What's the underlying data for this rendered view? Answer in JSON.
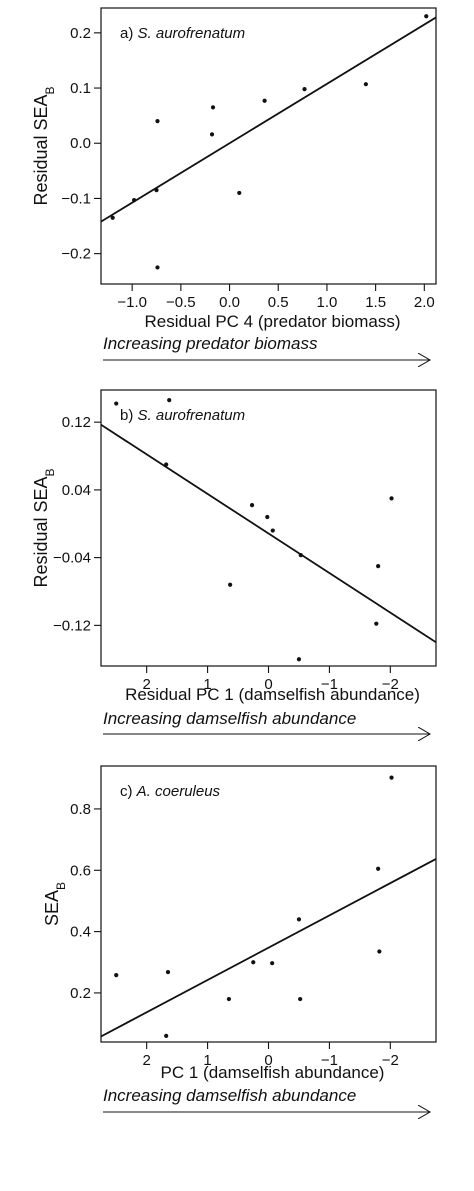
{
  "chart_data": [
    {
      "type": "scatter",
      "panel_label": "a)",
      "species": "S. aurofrenatum",
      "xlabel": "Residual PC 4 (predator biomass)",
      "ylabel_main": "Residual SEA",
      "ylabel_sub": "B",
      "arrow_label": "Increasing predator biomass",
      "xlim": [
        -1.32,
        2.12
      ],
      "ylim": [
        -0.255,
        0.245
      ],
      "x_reversed": false,
      "xticks": [
        -1.0,
        -0.5,
        0.0,
        0.5,
        1.0,
        1.5,
        2.0
      ],
      "xtick_labels": [
        "−1.0",
        "−0.5",
        "0.0",
        "0.5",
        "1.0",
        "1.5",
        "2.0"
      ],
      "yticks": [
        -0.2,
        -0.1,
        0.0,
        0.1,
        0.2
      ],
      "ytick_labels": [
        "−0.2",
        "−0.1",
        "0.0",
        "0.1",
        "0.2"
      ],
      "points": [
        {
          "x": -1.2,
          "y": -0.135
        },
        {
          "x": -0.98,
          "y": -0.103
        },
        {
          "x": -0.75,
          "y": -0.085
        },
        {
          "x": -0.74,
          "y": 0.04
        },
        {
          "x": -0.74,
          "y": -0.225
        },
        {
          "x": -0.17,
          "y": 0.065
        },
        {
          "x": -0.18,
          "y": 0.016
        },
        {
          "x": 0.1,
          "y": -0.09
        },
        {
          "x": 0.36,
          "y": 0.077
        },
        {
          "x": 0.77,
          "y": 0.098
        },
        {
          "x": 1.4,
          "y": 0.107
        },
        {
          "x": 2.02,
          "y": 0.23
        }
      ],
      "fit_line": [
        {
          "x": -1.32,
          "y": -0.142
        },
        {
          "x": 2.12,
          "y": 0.228
        }
      ],
      "grid": false
    },
    {
      "type": "scatter",
      "panel_label": "b)",
      "species": "S. aurofrenatum",
      "xlabel": "Residual PC 1 (damselfish abundance)",
      "ylabel_main": "Residual SEA",
      "ylabel_sub": "B",
      "arrow_label": "Increasing damselfish abundance",
      "xlim": [
        2.75,
        -2.75
      ],
      "ylim": [
        -0.168,
        0.158
      ],
      "x_reversed": true,
      "xticks": [
        2,
        1,
        0,
        -1,
        -2
      ],
      "xtick_labels": [
        "2",
        "1",
        "0",
        "−1",
        "−2"
      ],
      "yticks": [
        0.12,
        0.04,
        -0.04,
        -0.12
      ],
      "ytick_labels": [
        "0.12",
        "0.04",
        "−0.04",
        "−0.12"
      ],
      "points": [
        {
          "x": 2.5,
          "y": 0.142
        },
        {
          "x": 1.63,
          "y": 0.146
        },
        {
          "x": 1.68,
          "y": 0.07
        },
        {
          "x": 0.63,
          "y": -0.072
        },
        {
          "x": 0.27,
          "y": 0.022
        },
        {
          "x": 0.02,
          "y": 0.008
        },
        {
          "x": -0.07,
          "y": -0.008
        },
        {
          "x": -0.53,
          "y": -0.037
        },
        {
          "x": -0.5,
          "y": -0.16
        },
        {
          "x": -1.8,
          "y": -0.05
        },
        {
          "x": -1.77,
          "y": -0.118
        },
        {
          "x": -2.02,
          "y": 0.03
        }
      ],
      "fit_line": [
        {
          "x": 2.75,
          "y": 0.117
        },
        {
          "x": -2.75,
          "y": -0.14
        }
      ],
      "grid": false
    },
    {
      "type": "scatter",
      "panel_label": "c)",
      "species": "A. coeruleus",
      "xlabel": "PC 1 (damselfish abundance)",
      "ylabel_main": "SEA",
      "ylabel_sub": "B",
      "arrow_label": "Increasing damselfish abundance",
      "xlim": [
        2.75,
        -2.75
      ],
      "ylim": [
        0.04,
        0.94
      ],
      "x_reversed": true,
      "xticks": [
        2,
        1,
        0,
        -1,
        -2
      ],
      "xtick_labels": [
        "2",
        "1",
        "0",
        "−1",
        "−2"
      ],
      "yticks": [
        0.2,
        0.4,
        0.6,
        0.8
      ],
      "ytick_labels": [
        "0.2",
        "0.4",
        "0.6",
        "0.8"
      ],
      "points": [
        {
          "x": 2.5,
          "y": 0.258
        },
        {
          "x": 1.65,
          "y": 0.268
        },
        {
          "x": 1.68,
          "y": 0.06
        },
        {
          "x": 0.65,
          "y": 0.18
        },
        {
          "x": 0.25,
          "y": 0.3
        },
        {
          "x": -0.06,
          "y": 0.297
        },
        {
          "x": -0.52,
          "y": 0.18
        },
        {
          "x": -0.5,
          "y": 0.44
        },
        {
          "x": -1.8,
          "y": 0.605
        },
        {
          "x": -1.82,
          "y": 0.335
        },
        {
          "x": -2.02,
          "y": 0.902
        }
      ],
      "fit_line": [
        {
          "x": 2.75,
          "y": 0.058
        },
        {
          "x": -2.75,
          "y": 0.637
        }
      ],
      "grid": false
    }
  ]
}
